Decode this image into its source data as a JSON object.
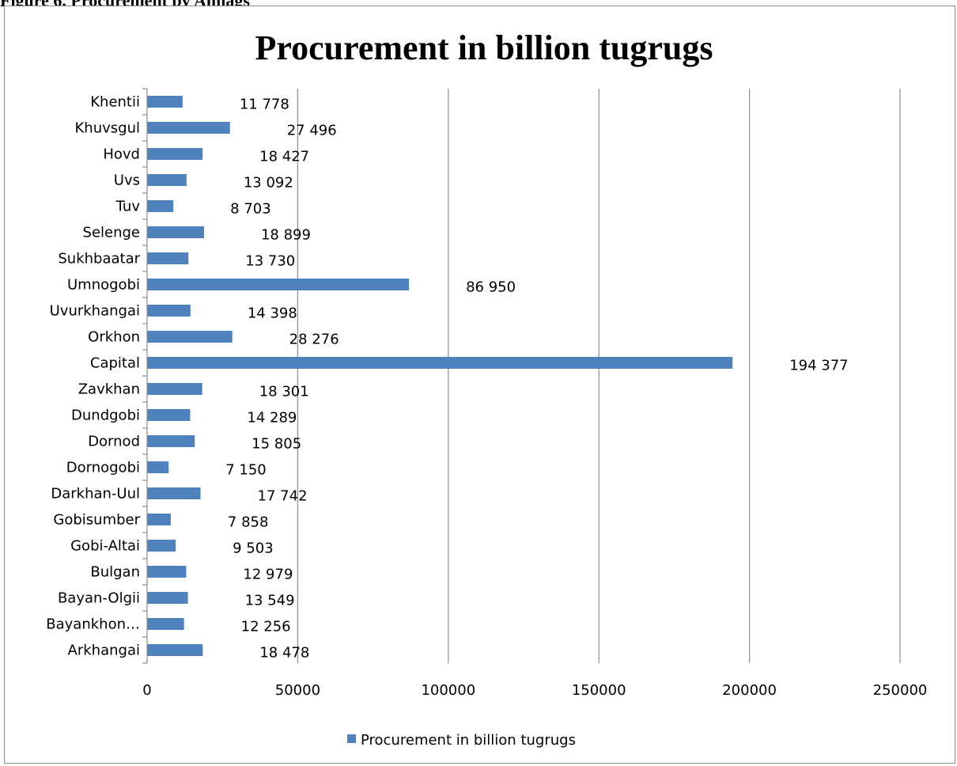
{
  "caption": "Figure 6. Procurement by Aimags",
  "chart_data": {
    "type": "bar",
    "orientation": "horizontal",
    "title": "Procurement in billion tugrugs",
    "xlabel": "",
    "ylabel": "",
    "xlim": [
      0,
      250000
    ],
    "x_ticks": [
      "0",
      "50000",
      "100000",
      "150000",
      "200000",
      "250000"
    ],
    "grid": "vertical major gridlines",
    "legend_position": "bottom",
    "bar_color": "#4F81BD",
    "categories": [
      "Arkhangai",
      "Bayankhon…",
      "Bayan-Olgii",
      "Bulgan",
      "Gobi-Altai",
      "Gobisumber",
      "Darkhan-Uul",
      "Dornogobi",
      "Dornod",
      "Dundgobi",
      "Zavkhan",
      "Capital",
      "Orkhon",
      "Uvurkhangai",
      "Umnogobi",
      "Sukhbaatar",
      "Selenge",
      "Tuv",
      "Uvs",
      "Hovd",
      "Khuvsgul",
      "Khentii"
    ],
    "series": [
      {
        "name": "Procurement in billion tugrugs",
        "values": [
          18478,
          12256,
          13549,
          12979,
          9503,
          7858,
          17742,
          7150,
          15805,
          14289,
          18301,
          194377,
          28276,
          14398,
          86950,
          13730,
          18899,
          8703,
          13092,
          18427,
          27496,
          11778
        ],
        "data_labels": [
          "18 478",
          "12 256",
          "13 549",
          "12 979",
          "9 503",
          "7 858",
          "17 742",
          "7 150",
          "15 805",
          "14 289",
          "18 301",
          "194 377",
          "28 276",
          "14 398",
          "86 950",
          "13 730",
          "18 899",
          "8 703",
          "13 092",
          "18 427",
          "27 496",
          "11 778"
        ]
      }
    ]
  }
}
